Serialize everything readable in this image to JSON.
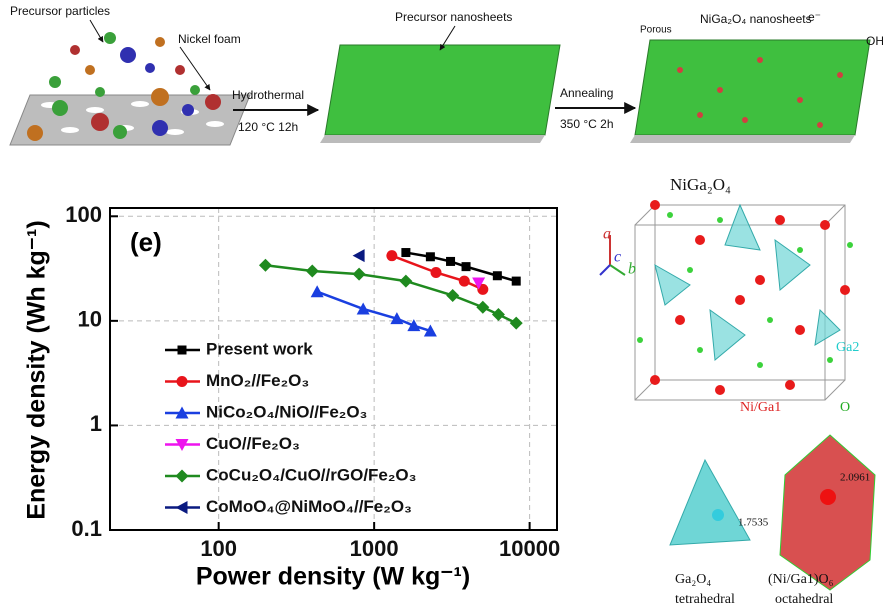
{
  "schematic": {
    "precursor_particles": "Precursor particles",
    "nickel_foam": "Nickel foam",
    "hydrothermal": "Hydrothermal",
    "hydrothermal_conditions": "120 °C   12h",
    "precursor_nanosheets": "Precursor nanosheets",
    "annealing": "Annealing",
    "annealing_conditions": "350 °C   2h",
    "porous": "Porous",
    "product": "NiGa₂O₄ nanosheets",
    "electron": "e⁻",
    "hydroxide": "OH"
  },
  "structure": {
    "title": "NiGa₂O₄",
    "axis_a": "a",
    "axis_b": "b",
    "axis_c": "c",
    "ga2": "Ga2",
    "ni_ga1": "Ni/Ga1",
    "oxygen": "O",
    "bond_tetra": "1.7535",
    "bond_octa": "2.0961",
    "tetra_formula": "Ga₂O₄",
    "tetra_name": "tetrahedral",
    "octa_formula": "(Ni/Ga1)O₆",
    "octa_name": "octahedral"
  },
  "chart_data": {
    "type": "scatter-line",
    "panel_label": "(e)",
    "x_label": "Power density (W kg⁻¹)",
    "y_label": "Energy density (Wh kg⁻¹)",
    "xscale": "log",
    "yscale": "log",
    "grid": true,
    "xlim": [
      20,
      15000
    ],
    "ylim": [
      0.1,
      120
    ],
    "xticks": [
      100,
      1000,
      10000
    ],
    "yticks": [
      0.1,
      1,
      10,
      100
    ],
    "series": [
      {
        "name": "Present work",
        "color": "#000000",
        "marker": "square",
        "x": [
          1600,
          2300,
          3100,
          3900,
          6200,
          8200
        ],
        "values": [
          45,
          41,
          37,
          33,
          27,
          24
        ]
      },
      {
        "name": "MnO₂//Fe₂O₃",
        "color": "#e8141b",
        "marker": "circle",
        "x": [
          1300,
          2500,
          3800,
          5000
        ],
        "values": [
          42,
          29,
          24,
          20
        ]
      },
      {
        "name": "NiCo₂O₄/NiO//Fe₂O₃",
        "color": "#1a3fe0",
        "marker": "triangle-up",
        "x": [
          430,
          850,
          1400,
          1800,
          2300
        ],
        "values": [
          19,
          13,
          10.5,
          9,
          8
        ]
      },
      {
        "name": "CuO//Fe₂O₃",
        "color": "#ee14ee",
        "marker": "triangle-down",
        "x": [
          4700
        ],
        "values": [
          23
        ]
      },
      {
        "name": "CoCu₂O₄/CuO//rGO/Fe₂O₃",
        "color": "#1f8a1f",
        "marker": "diamond",
        "x": [
          200,
          400,
          800,
          1600,
          3200,
          5000,
          6300,
          8200
        ],
        "values": [
          34,
          30,
          28,
          24,
          17.5,
          13.5,
          11.5,
          9.5
        ]
      },
      {
        "name": "CoMoO₄@NiMoO₄//Fe₂O₃",
        "color": "#0a1a80",
        "marker": "triangle-left",
        "x": [
          800
        ],
        "values": [
          42
        ]
      }
    ]
  }
}
